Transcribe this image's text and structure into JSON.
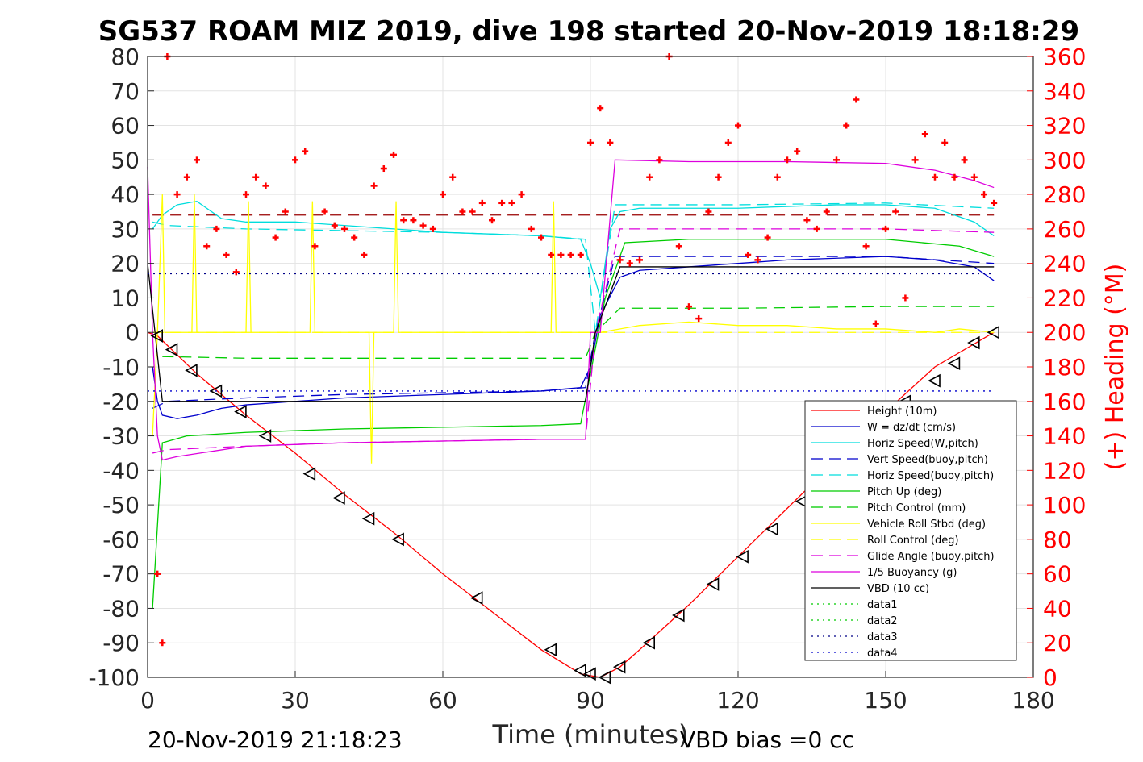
{
  "title": "SG537 ROAM MIZ 2019, dive 198 started 20-Nov-2019 18:18:29",
  "footer_left": "20-Nov-2019 21:18:23",
  "footer_right": "VBD bias =0 cc",
  "chart_data": {
    "type": "line",
    "xlabel": "Time (minutes)",
    "ylabel": "",
    "ylabel_right": "(+) Heading (°M)",
    "xlim": [
      0,
      180
    ],
    "ylim": [
      -100,
      80
    ],
    "ylim_right": [
      0,
      360
    ],
    "xticks": [
      0,
      30,
      60,
      90,
      120,
      150,
      180
    ],
    "yticks": [
      80,
      70,
      60,
      50,
      40,
      30,
      20,
      10,
      0,
      -10,
      -20,
      -30,
      -40,
      -50,
      -60,
      -70,
      -80,
      -90,
      -100
    ],
    "yticks_right": [
      360,
      340,
      320,
      300,
      280,
      260,
      240,
      220,
      200,
      180,
      160,
      140,
      120,
      100,
      80,
      60,
      40,
      20,
      0
    ],
    "grid": true,
    "legend_position": "bottom-right",
    "legend": [
      {
        "name": "Height (10m)",
        "color": "#ff0000",
        "dash": "solid"
      },
      {
        "name": "W = dz/dt (cm/s)",
        "color": "#0000cc",
        "dash": "solid"
      },
      {
        "name": "Horiz Speed(W,pitch)",
        "color": "#00dddd",
        "dash": "solid"
      },
      {
        "name": "Vert Speed(buoy,pitch)",
        "color": "#0000cc",
        "dash": "dashed"
      },
      {
        "name": "Horiz Speed(buoy,pitch)",
        "color": "#00dddd",
        "dash": "dashed"
      },
      {
        "name": "Pitch Up (deg)",
        "color": "#00cc00",
        "dash": "solid"
      },
      {
        "name": "Pitch Control (mm)",
        "color": "#00cc00",
        "dash": "dashed"
      },
      {
        "name": "Vehicle Roll Stbd (deg)",
        "color": "#ffff00",
        "dash": "solid"
      },
      {
        "name": "Roll Control (deg)",
        "color": "#ffff00",
        "dash": "dashed"
      },
      {
        "name": "Glide Angle (buoy,pitch)",
        "color": "#dd00dd",
        "dash": "dashed"
      },
      {
        "name": "1/5 Buoyancy (g)",
        "color": "#dd00dd",
        "dash": "solid"
      },
      {
        "name": "VBD (10 cc)",
        "color": "#000000",
        "dash": "solid"
      },
      {
        "name": "data1",
        "color": "#00cc00",
        "dash": "dotted"
      },
      {
        "name": "data2",
        "color": "#00cc00",
        "dash": "dotted"
      },
      {
        "name": "data3",
        "color": "#000088",
        "dash": "dotted"
      },
      {
        "name": "data4",
        "color": "#0000cc",
        "dash": "dotted"
      }
    ],
    "series": [
      {
        "name": "Height (10m)",
        "color": "#ff0000",
        "x": [
          0,
          2,
          10,
          20,
          30,
          40,
          50,
          60,
          70,
          80,
          88,
          92,
          96,
          100,
          110,
          120,
          130,
          140,
          150,
          160,
          172
        ],
        "y": [
          0,
          -1,
          -12,
          -24,
          -35,
          -47,
          -58,
          -70,
          -81,
          -92,
          -99,
          -100,
          -97,
          -92,
          -79,
          -65,
          -51,
          -37,
          -23,
          -10,
          0
        ]
      },
      {
        "name": "W = dz/dt (cm/s)",
        "color": "#0000cc",
        "x": [
          1,
          2,
          3,
          6,
          10,
          15,
          20,
          30,
          40,
          50,
          60,
          70,
          80,
          88,
          90,
          92,
          96,
          100,
          110,
          120,
          130,
          140,
          150,
          160,
          168,
          172
        ],
        "y": [
          -10,
          -20,
          -24,
          -25,
          -24,
          -22,
          -21,
          -20,
          -19,
          -18.5,
          -18,
          -17.5,
          -17,
          -16,
          -10,
          5,
          16,
          18,
          19,
          20,
          21,
          21.5,
          22,
          21,
          19,
          15
        ]
      },
      {
        "name": "Horiz Speed(W,pitch)",
        "color": "#00dddd",
        "x": [
          1,
          3,
          6,
          10,
          15,
          20,
          30,
          40,
          50,
          60,
          70,
          80,
          88,
          90,
          92,
          94,
          96,
          100,
          110,
          120,
          130,
          140,
          150,
          160,
          168,
          172
        ],
        "y": [
          30,
          34,
          37,
          38,
          33,
          32,
          32,
          31,
          30,
          29,
          28.5,
          28,
          27,
          20,
          10,
          30,
          35,
          36,
          36,
          36,
          36.5,
          37,
          37,
          36,
          32,
          28
        ]
      },
      {
        "name": "Vert Speed(buoy,pitch)",
        "color": "#0000cc",
        "dash": "dashed",
        "x": [
          1,
          4,
          20,
          40,
          60,
          80,
          89,
          91,
          95,
          120,
          150,
          172
        ],
        "y": [
          -22,
          -20,
          -19,
          -18,
          -17.5,
          -17,
          -16,
          0,
          22,
          22,
          22,
          20
        ]
      },
      {
        "name": "Horiz Speed(buoy,pitch)",
        "color": "#00dddd",
        "dash": "dashed",
        "x": [
          1,
          4,
          20,
          40,
          60,
          80,
          89,
          91,
          95,
          120,
          150,
          172
        ],
        "y": [
          32,
          31,
          30,
          29.5,
          29,
          28,
          27,
          0,
          37,
          37,
          37.5,
          36
        ]
      },
      {
        "name": "Pitch Up (deg)",
        "color": "#00cc00",
        "x": [
          1,
          3,
          8,
          20,
          40,
          60,
          80,
          88,
          90,
          93,
          97,
          110,
          130,
          150,
          165,
          172
        ],
        "y": [
          -80,
          -32,
          -30,
          -29,
          -28,
          -27.5,
          -27,
          -26.5,
          -12,
          10,
          26,
          27,
          27,
          27,
          25,
          22
        ]
      },
      {
        "name": "Pitch Control (mm)",
        "color": "#00cc00",
        "dash": "dashed",
        "x": [
          3,
          20,
          40,
          60,
          80,
          89,
          91,
          96,
          120,
          150,
          172
        ],
        "y": [
          -7,
          -7.5,
          -7.5,
          -7.5,
          -7.5,
          -7.5,
          0,
          7,
          7,
          7.5,
          7.5
        ]
      },
      {
        "name": "Vehicle Roll Stbd (deg)",
        "color": "#ffff00",
        "x": [
          1,
          2,
          3,
          3.5,
          4,
          9,
          9.5,
          10,
          20,
          20.5,
          21,
          33,
          33.5,
          34,
          45,
          45.5,
          46,
          50,
          50.5,
          51,
          60,
          70,
          82,
          82.5,
          83,
          90,
          92,
          100,
          110,
          120,
          130,
          140,
          150,
          160,
          165,
          172
        ],
        "y": [
          -30,
          0,
          40,
          0,
          0,
          0,
          40,
          0,
          0,
          38,
          0,
          0,
          38,
          0,
          0,
          -38,
          0,
          0,
          38,
          0,
          0,
          0,
          0,
          38,
          0,
          0,
          0,
          2,
          3,
          2,
          2,
          1,
          1,
          0,
          1,
          0
        ]
      },
      {
        "name": "Roll Control (deg)",
        "color": "#ffff00",
        "dash": "dashed",
        "x": [
          1,
          30,
          60,
          88,
          90,
          100,
          130,
          160,
          172
        ],
        "y": [
          0,
          0,
          0,
          0,
          0,
          0,
          0,
          0,
          0
        ]
      },
      {
        "name": "Glide Angle (buoy,pitch)",
        "color": "#dd00dd",
        "dash": "dashed",
        "x": [
          1,
          4,
          20,
          40,
          60,
          80,
          89,
          91,
          96,
          120,
          150,
          172
        ],
        "y": [
          -35,
          -34,
          -33,
          -32,
          -31.5,
          -31,
          -31,
          0,
          30,
          30,
          30,
          29
        ]
      },
      {
        "name": "1/5 Buoyancy (g)",
        "color": "#dd00dd",
        "x": [
          0,
          1,
          2,
          3,
          6,
          20,
          40,
          60,
          80,
          89,
          90,
          92,
          95,
          110,
          130,
          150,
          160,
          168,
          172
        ],
        "y": [
          48,
          0,
          -30,
          -37,
          -36,
          -33,
          -32,
          -31.5,
          -31,
          -31,
          0,
          0,
          50,
          49.5,
          49.5,
          49,
          47,
          44,
          42
        ]
      },
      {
        "name": "VBD (10 cc)",
        "color": "#000000",
        "x": [
          0,
          3,
          20,
          40,
          60,
          80,
          89,
          91,
          96,
          120,
          150,
          172
        ],
        "y": [
          20,
          -20,
          -20,
          -20,
          -20,
          -20,
          -20,
          0,
          19,
          19,
          19,
          19
        ]
      },
      {
        "name": "data3",
        "color": "#000088",
        "dash": "dotted",
        "x": [
          0,
          172
        ],
        "y": [
          17,
          17
        ]
      },
      {
        "name": "data4",
        "color": "#0000cc",
        "dash": "dotted",
        "x": [
          0,
          172
        ],
        "y": [
          -17,
          -17
        ]
      }
    ],
    "reference_lines": [
      {
        "color": "#990000",
        "dash": "dashed",
        "x": [
          1,
          172
        ],
        "y": [
          34,
          34
        ]
      }
    ],
    "heading": {
      "name": "Heading",
      "color": "#ff0000",
      "x": [
        2,
        3,
        4,
        6,
        8,
        10,
        12,
        14,
        16,
        18,
        20,
        22,
        24,
        26,
        28,
        30,
        32,
        34,
        36,
        38,
        40,
        42,
        44,
        46,
        48,
        50,
        52,
        54,
        56,
        58,
        60,
        62,
        64,
        66,
        68,
        70,
        72,
        74,
        76,
        78,
        80,
        82,
        84,
        86,
        88,
        90,
        92,
        94,
        96,
        98,
        100,
        102,
        104,
        106,
        108,
        110,
        112,
        114,
        116,
        118,
        120,
        122,
        124,
        126,
        128,
        130,
        132,
        134,
        136,
        138,
        140,
        142,
        144,
        146,
        148,
        150,
        152,
        154,
        156,
        158,
        160,
        162,
        164,
        166,
        168,
        170,
        172
      ],
      "y": [
        60,
        20,
        360,
        280,
        290,
        300,
        250,
        260,
        245,
        235,
        280,
        290,
        285,
        255,
        270,
        300,
        305,
        250,
        270,
        262,
        260,
        255,
        245,
        285,
        295,
        303,
        265,
        265,
        262,
        260,
        280,
        290,
        270,
        270,
        275,
        265,
        275,
        275,
        280,
        260,
        255,
        245,
        245,
        245,
        245,
        310,
        330,
        310,
        242,
        240,
        242,
        290,
        300,
        360,
        250,
        215,
        208,
        270,
        290,
        310,
        320,
        245,
        242,
        255,
        290,
        300,
        305,
        265,
        260,
        270,
        300,
        320,
        335,
        250,
        205,
        260,
        270,
        220,
        300,
        315,
        290,
        310,
        290,
        300,
        290,
        280,
        275
      ]
    },
    "markers": {
      "name": "VBD triangles",
      "color": "#000000",
      "x": [
        2,
        5,
        9,
        14,
        19,
        24,
        33,
        39,
        45,
        51,
        67,
        82,
        88,
        90,
        93,
        96,
        102,
        108,
        115,
        121,
        127,
        133,
        154,
        160,
        164,
        168,
        172
      ],
      "y": [
        -1,
        -5,
        -11,
        -17,
        -23,
        -30,
        -41,
        -48,
        -54,
        -60,
        -77,
        -92,
        -98,
        -99,
        -100,
        -97,
        -90,
        -82,
        -73,
        -65,
        -57,
        -49,
        -20,
        -14,
        -9,
        -3,
        0
      ]
    }
  }
}
